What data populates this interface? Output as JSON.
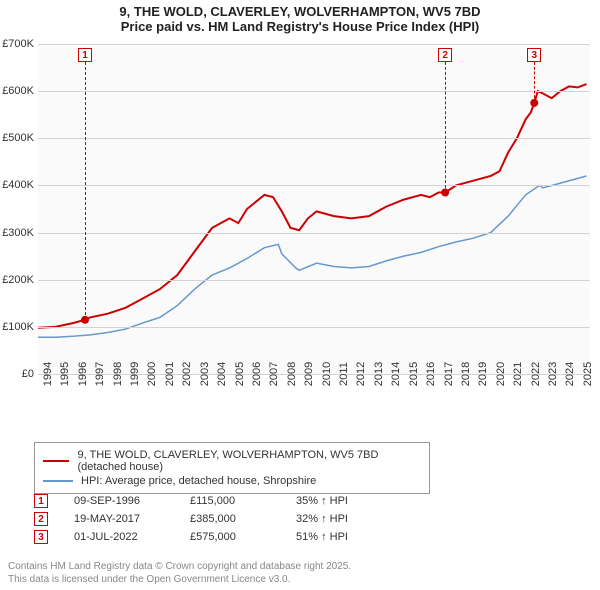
{
  "title": {
    "line1": "9, THE WOLD, CLAVERLEY, WOLVERHAMPTON, WV5 7BD",
    "line2": "Price paid vs. HM Land Registry's House Price Index (HPI)"
  },
  "chart": {
    "type": "line",
    "background_color": "#fbfafa",
    "grid_color": "#d4d2d2",
    "x": {
      "years": [
        1994,
        1995,
        1996,
        1997,
        1998,
        1999,
        2000,
        2001,
        2002,
        2003,
        2004,
        2005,
        2006,
        2007,
        2008,
        2009,
        2010,
        2011,
        2012,
        2013,
        2014,
        2015,
        2016,
        2017,
        2018,
        2019,
        2020,
        2021,
        2022,
        2023,
        2024,
        2025
      ],
      "min": 1994,
      "max": 2025.7
    },
    "y": {
      "ticks": [
        0,
        100000,
        200000,
        300000,
        400000,
        500000,
        600000,
        700000
      ],
      "tick_labels": [
        "£0",
        "£100K",
        "£200K",
        "£300K",
        "£400K",
        "£500K",
        "£600K",
        "£700K"
      ],
      "min": 0,
      "max": 700000
    },
    "series": [
      {
        "name": "price_paid",
        "label": "9, THE WOLD, CLAVERLEY, WOLVERHAMPTON, WV5 7BD (detached house)",
        "color": "#cc0000",
        "width": 2,
        "points": [
          [
            1994,
            98000
          ],
          [
            1995,
            100000
          ],
          [
            1996,
            108000
          ],
          [
            1996.7,
            115000
          ],
          [
            1997,
            120000
          ],
          [
            1998,
            128000
          ],
          [
            1999,
            140000
          ],
          [
            2000,
            160000
          ],
          [
            2001,
            180000
          ],
          [
            2002,
            210000
          ],
          [
            2003,
            260000
          ],
          [
            2004,
            310000
          ],
          [
            2005,
            330000
          ],
          [
            2005.5,
            320000
          ],
          [
            2006,
            350000
          ],
          [
            2007,
            380000
          ],
          [
            2007.5,
            375000
          ],
          [
            2008,
            345000
          ],
          [
            2008.5,
            310000
          ],
          [
            2009,
            305000
          ],
          [
            2009.5,
            330000
          ],
          [
            2010,
            345000
          ],
          [
            2011,
            335000
          ],
          [
            2012,
            330000
          ],
          [
            2013,
            335000
          ],
          [
            2014,
            355000
          ],
          [
            2015,
            370000
          ],
          [
            2016,
            380000
          ],
          [
            2016.5,
            375000
          ],
          [
            2017,
            385000
          ],
          [
            2017.4,
            385000
          ],
          [
            2018,
            400000
          ],
          [
            2019,
            410000
          ],
          [
            2020,
            420000
          ],
          [
            2020.5,
            430000
          ],
          [
            2021,
            470000
          ],
          [
            2021.5,
            500000
          ],
          [
            2022,
            540000
          ],
          [
            2022.3,
            555000
          ],
          [
            2022.5,
            575000
          ],
          [
            2022.7,
            600000
          ],
          [
            2023,
            595000
          ],
          [
            2023.5,
            585000
          ],
          [
            2024,
            600000
          ],
          [
            2024.5,
            610000
          ],
          [
            2025,
            608000
          ],
          [
            2025.5,
            615000
          ]
        ]
      },
      {
        "name": "hpi",
        "label": "HPI: Average price, detached house, Shropshire",
        "color": "#6699cc",
        "width": 1.5,
        "points": [
          [
            1994,
            78000
          ],
          [
            1995,
            78000
          ],
          [
            1996,
            80000
          ],
          [
            1997,
            83000
          ],
          [
            1998,
            88000
          ],
          [
            1999,
            95000
          ],
          [
            2000,
            108000
          ],
          [
            2001,
            120000
          ],
          [
            2002,
            145000
          ],
          [
            2003,
            180000
          ],
          [
            2004,
            210000
          ],
          [
            2005,
            225000
          ],
          [
            2006,
            245000
          ],
          [
            2007,
            268000
          ],
          [
            2007.8,
            275000
          ],
          [
            2008,
            255000
          ],
          [
            2008.8,
            225000
          ],
          [
            2009,
            220000
          ],
          [
            2010,
            235000
          ],
          [
            2011,
            228000
          ],
          [
            2012,
            225000
          ],
          [
            2013,
            228000
          ],
          [
            2014,
            240000
          ],
          [
            2015,
            250000
          ],
          [
            2016,
            258000
          ],
          [
            2017,
            270000
          ],
          [
            2018,
            280000
          ],
          [
            2019,
            288000
          ],
          [
            2020,
            300000
          ],
          [
            2021,
            335000
          ],
          [
            2022,
            380000
          ],
          [
            2022.8,
            400000
          ],
          [
            2023,
            395000
          ],
          [
            2024,
            405000
          ],
          [
            2025,
            415000
          ],
          [
            2025.5,
            420000
          ]
        ]
      }
    ],
    "markers": [
      {
        "n": "1",
        "year": 1996.7,
        "value": 115000,
        "callout_top": 4
      },
      {
        "n": "2",
        "year": 2017.38,
        "value": 385000,
        "callout_top": 4
      },
      {
        "n": "3",
        "year": 2022.5,
        "value": 575000,
        "callout_top": 4
      }
    ]
  },
  "legend": {
    "rows": [
      {
        "color": "#cc0000",
        "label": "9, THE WOLD, CLAVERLEY, WOLVERHAMPTON, WV5 7BD (detached house)"
      },
      {
        "color": "#6699cc",
        "label": "HPI: Average price, detached house, Shropshire"
      }
    ]
  },
  "marker_table": [
    {
      "n": "1",
      "date": "09-SEP-1996",
      "price": "£115,000",
      "pct": "35% ↑ HPI"
    },
    {
      "n": "2",
      "date": "19-MAY-2017",
      "price": "£385,000",
      "pct": "32% ↑ HPI"
    },
    {
      "n": "3",
      "date": "01-JUL-2022",
      "price": "£575,000",
      "pct": "51% ↑ HPI"
    }
  ],
  "footer": {
    "line1": "Contains HM Land Registry data © Crown copyright and database right 2025.",
    "line2": "This data is licensed under the Open Government Licence v3.0."
  }
}
